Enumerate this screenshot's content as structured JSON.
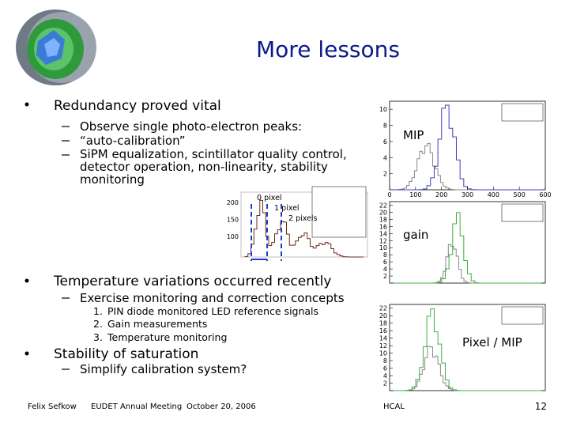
{
  "header": {
    "title": "More lessons"
  },
  "bullets": [
    {
      "text": "Redundancy proved vital",
      "items": [
        {
          "text": "Observe single photo-electron peaks:"
        },
        {
          "text": "“auto-calibration”"
        },
        {
          "text": "SiPM equalization, scintillator quality control, detector operation, non-linearity, stability monitoring"
        }
      ]
    },
    {
      "text": "Temperature variations occurred recently",
      "items": [
        {
          "text": "Exercise monitoring and correction concepts",
          "steps": [
            {
              "num": "1.",
              "text": "PIN diode monitored LED reference signals"
            },
            {
              "num": "2.",
              "text": "Gain measurements"
            },
            {
              "num": "3.",
              "text": "Temperature monitoring"
            }
          ]
        }
      ]
    },
    {
      "text": "Stability of saturation",
      "items": [
        {
          "text": "Simplify calibration system?"
        }
      ]
    }
  ],
  "spectrum": {
    "labels": [
      "0 pixel",
      "1 pixel",
      "2 pixels"
    ],
    "yticks": [
      200,
      150,
      100
    ],
    "ylim": [
      40,
      230
    ]
  },
  "plots": [
    {
      "label": "MIP",
      "ylim": [
        0,
        11
      ],
      "yticks": [
        10,
        8,
        6,
        4,
        2
      ],
      "xlim": [
        0,
        600
      ],
      "xticks": [
        0,
        100,
        200,
        300,
        400,
        500,
        600
      ]
    },
    {
      "label": "gain",
      "ylim": [
        0,
        23
      ],
      "yticks": [
        22,
        20,
        18,
        16,
        14,
        12,
        10,
        8,
        6,
        4,
        2
      ]
    },
    {
      "label": "Pixel / MIP",
      "ylim": [
        0,
        23
      ],
      "yticks": [
        22,
        20,
        18,
        16,
        14,
        12,
        10,
        8,
        6,
        4,
        2
      ]
    }
  ],
  "footer": {
    "author": "Felix Sefkow",
    "event": "EUDET Annual Meeting",
    "date": "October 20, 2006",
    "group": "HCAL",
    "page": "12"
  }
}
